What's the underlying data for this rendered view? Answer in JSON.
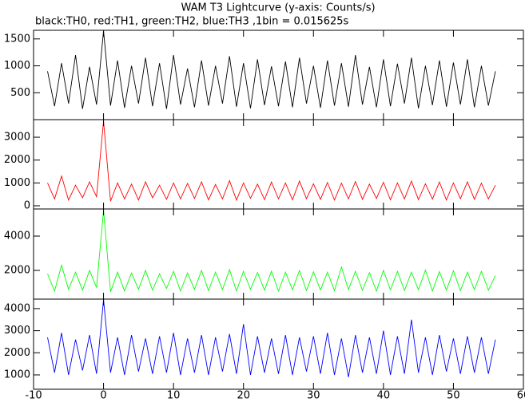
{
  "chart_data": [
    {
      "type": "line",
      "title": "WAM T3 Lightcurve (y-axis: Counts/s)",
      "subtitle": "black:TH0, red:TH1, green:TH2, blue:TH3 ,1bin = 0.015625s",
      "x": [
        -8,
        -7,
        -6,
        -5,
        -4,
        -3,
        -2,
        -1,
        0,
        1,
        2,
        3,
        4,
        5,
        6,
        7,
        8,
        9,
        10,
        11,
        12,
        13,
        14,
        15,
        16,
        17,
        18,
        19,
        20,
        21,
        22,
        23,
        24,
        25,
        26,
        27,
        28,
        29,
        30,
        31,
        32,
        33,
        34,
        35,
        36,
        37,
        38,
        39,
        40,
        41,
        42,
        43,
        44,
        45,
        46,
        47,
        48,
        49,
        50,
        51,
        52,
        53,
        54,
        55,
        56
      ],
      "values": [
        900,
        250,
        1050,
        300,
        1200,
        200,
        980,
        280,
        1650,
        260,
        1100,
        220,
        1000,
        300,
        1150,
        250,
        1050,
        200,
        1200,
        280,
        950,
        230,
        1100,
        260,
        1000,
        300,
        1180,
        240,
        1050,
        210,
        1120,
        270,
        990,
        250,
        1080,
        230,
        1150,
        300,
        1000,
        220,
        1100,
        260,
        1050,
        240,
        1200,
        280,
        980,
        230,
        1120,
        250,
        1040,
        300,
        1150,
        210,
        1000,
        270,
        1100,
        240,
        1060,
        280,
        1120,
        230,
        1000,
        260,
        900
      ],
      "color": "#000000",
      "ylim": [
        0,
        1660
      ],
      "yticks": [
        500,
        1000,
        1500
      ]
    },
    {
      "type": "line",
      "x": [
        -8,
        -7,
        -6,
        -5,
        -4,
        -3,
        -2,
        -1,
        0,
        1,
        2,
        3,
        4,
        5,
        6,
        7,
        8,
        9,
        10,
        11,
        12,
        13,
        14,
        15,
        16,
        17,
        18,
        19,
        20,
        21,
        22,
        23,
        24,
        25,
        26,
        27,
        28,
        29,
        30,
        31,
        32,
        33,
        34,
        35,
        36,
        37,
        38,
        39,
        40,
        41,
        42,
        43,
        44,
        45,
        46,
        47,
        48,
        49,
        50,
        51,
        52,
        53,
        54,
        55,
        56
      ],
      "values": [
        1000,
        300,
        1300,
        250,
        900,
        350,
        1050,
        400,
        3700,
        200,
        1000,
        300,
        950,
        250,
        1050,
        350,
        900,
        280,
        1000,
        300,
        980,
        320,
        1050,
        260,
        930,
        300,
        1100,
        250,
        1000,
        330,
        950,
        270,
        1040,
        300,
        1000,
        260,
        1080,
        310,
        960,
        280,
        1020,
        250,
        990,
        300,
        1060,
        280,
        950,
        320,
        1030,
        260,
        1000,
        300,
        1080,
        270,
        960,
        290,
        1040,
        250,
        1000,
        310,
        1050,
        280,
        990,
        300,
        900
      ],
      "color": "#ff0000",
      "ylim": [
        -140,
        3770
      ],
      "yticks": [
        0,
        1000,
        2000,
        3000
      ]
    },
    {
      "type": "line",
      "x": [
        -8,
        -7,
        -6,
        -5,
        -4,
        -3,
        -2,
        -1,
        0,
        1,
        2,
        3,
        4,
        5,
        6,
        7,
        8,
        9,
        10,
        11,
        12,
        13,
        14,
        15,
        16,
        17,
        18,
        19,
        20,
        21,
        22,
        23,
        24,
        25,
        26,
        27,
        28,
        29,
        30,
        31,
        32,
        33,
        34,
        35,
        36,
        37,
        38,
        39,
        40,
        41,
        42,
        43,
        44,
        45,
        46,
        47,
        48,
        49,
        50,
        51,
        52,
        53,
        54,
        55,
        56
      ],
      "values": [
        1800,
        800,
        2300,
        900,
        1900,
        850,
        2000,
        1000,
        5500,
        750,
        1900,
        800,
        1850,
        900,
        2000,
        850,
        1800,
        950,
        1950,
        800,
        1850,
        900,
        2000,
        820,
        1900,
        880,
        2050,
        800,
        1950,
        900,
        1880,
        850,
        1960,
        800,
        1900,
        870,
        2000,
        830,
        1920,
        860,
        1900,
        820,
        2200,
        880,
        1950,
        840,
        1870,
        800,
        2000,
        860,
        1950,
        830,
        1900,
        870,
        2020,
        800,
        1930,
        850,
        1980,
        820,
        1900,
        880,
        1950,
        850,
        1700
      ],
      "color": "#00ff00",
      "ylim": [
        330,
        5580
      ],
      "yticks": [
        2000,
        4000
      ]
    },
    {
      "type": "line",
      "x": [
        -8,
        -7,
        -6,
        -5,
        -4,
        -3,
        -2,
        -1,
        0,
        1,
        2,
        3,
        4,
        5,
        6,
        7,
        8,
        9,
        10,
        11,
        12,
        13,
        14,
        15,
        16,
        17,
        18,
        19,
        20,
        21,
        22,
        23,
        24,
        25,
        26,
        27,
        28,
        29,
        30,
        31,
        32,
        33,
        34,
        35,
        36,
        37,
        38,
        39,
        40,
        41,
        42,
        43,
        44,
        45,
        46,
        47,
        48,
        49,
        50,
        51,
        52,
        53,
        54,
        55,
        56
      ],
      "values": [
        2700,
        1100,
        2900,
        1000,
        2600,
        1200,
        2800,
        1050,
        4400,
        1100,
        2700,
        1000,
        2800,
        1150,
        2650,
        1050,
        2750,
        1100,
        2900,
        1000,
        2650,
        1100,
        2800,
        1000,
        2700,
        1150,
        2850,
        1050,
        3300,
        1000,
        2750,
        1100,
        2650,
        1050,
        2800,
        1000,
        2700,
        1150,
        2750,
        1050,
        2900,
        1000,
        2650,
        900,
        2800,
        1100,
        2700,
        1050,
        3000,
        1000,
        2750,
        1050,
        3500,
        1100,
        2700,
        1000,
        2800,
        1150,
        2650,
        1050,
        2750,
        1100,
        2700,
        1050,
        2600
      ],
      "color": "#0000ff",
      "ylim": [
        350,
        4430
      ],
      "yticks": [
        1000,
        2000,
        3000,
        4000
      ],
      "xlim": [
        -10,
        60
      ],
      "xticks": [
        -10,
        0,
        10,
        20,
        30,
        40,
        50,
        60
      ]
    }
  ]
}
